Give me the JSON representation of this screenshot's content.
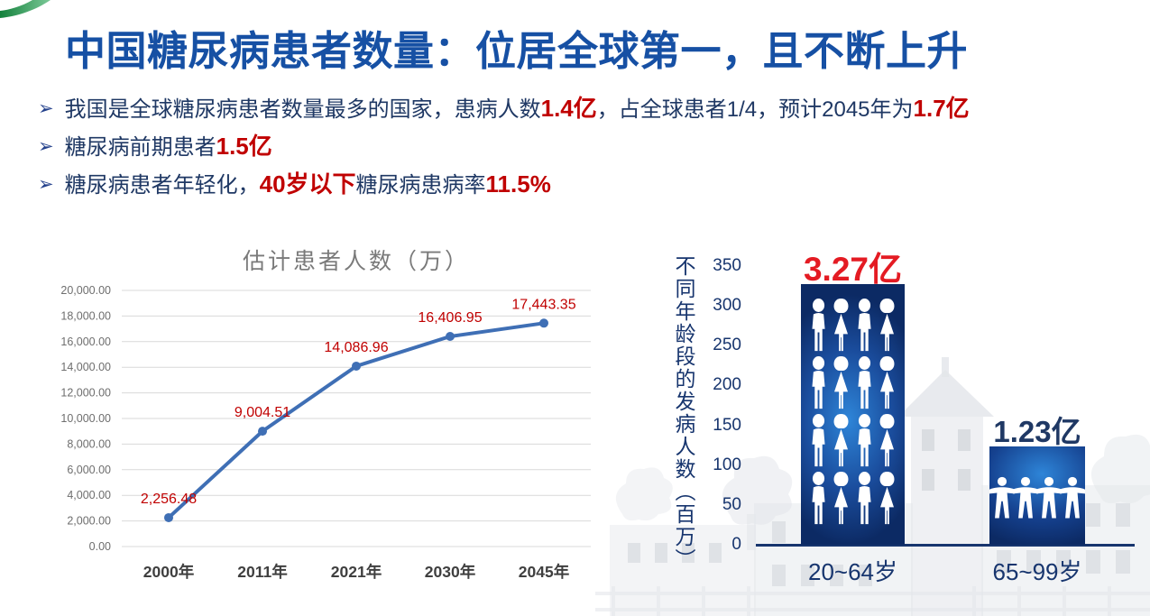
{
  "title": "中国糖尿病患者数量：位居全球第一，且不断上升",
  "bullet_marker": "➢",
  "bullets": [
    {
      "parts": [
        {
          "t": "我国是全球糖尿病患者数量最多的国家，患病人数"
        },
        {
          "t": "1.4亿",
          "em": true
        },
        {
          "t": "，占全球患者1/4，预计2045年为"
        },
        {
          "t": "1.7亿",
          "em": true
        }
      ]
    },
    {
      "parts": [
        {
          "t": "糖尿病前期患者"
        },
        {
          "t": "1.5亿",
          "em": true
        }
      ]
    },
    {
      "parts": [
        {
          "t": "糖尿病患者年轻化，"
        },
        {
          "t": "40岁以下",
          "em": true
        },
        {
          "t": "糖尿病患病率"
        },
        {
          "t": "11.5%",
          "em": true
        }
      ]
    }
  ],
  "chart_data": [
    {
      "type": "line",
      "title": "估计患者人数（万）",
      "categories": [
        "2000年",
        "2011年",
        "2021年",
        "2030年",
        "2045年"
      ],
      "values": [
        2256.48,
        9004.51,
        14086.96,
        16406.95,
        17443.35
      ],
      "point_labels": [
        "2,256.48",
        "9,004.51",
        "14,086.96",
        "16,406.95",
        "17,443.35"
      ],
      "ylim": [
        0,
        20000
      ],
      "ytick_step": 2000,
      "grid": true,
      "legend": "none",
      "line_color": "#3f6fb5",
      "point_label_color": "#c00000"
    },
    {
      "type": "bar",
      "axis_label": "不同年龄段的发病人数（百万）",
      "categories": [
        "20~64岁",
        "65~99岁"
      ],
      "values": [
        327,
        123
      ],
      "bar_labels": [
        "3.27亿",
        "1.23亿"
      ],
      "bar_label_colors": [
        "#e41b23",
        "#1f3864"
      ],
      "ylim": [
        0,
        350
      ],
      "ytick_step": 50,
      "grid": false,
      "bar_color": "#0d2b66",
      "bar_highlight": "#2f86d8",
      "pictograms": [
        {
          "icon": "man-woman-icons",
          "rows": 4,
          "cols": 4
        },
        {
          "icon": "people-holding-hands-icon",
          "count": 4
        }
      ]
    }
  ],
  "colors": {
    "title_blue": "#1650a4",
    "body_navy": "#1f3864",
    "em_red": "#c00000",
    "axis_navy": "#17356e",
    "line_blue": "#3f6fb5",
    "corner_green": "#1d9548"
  }
}
